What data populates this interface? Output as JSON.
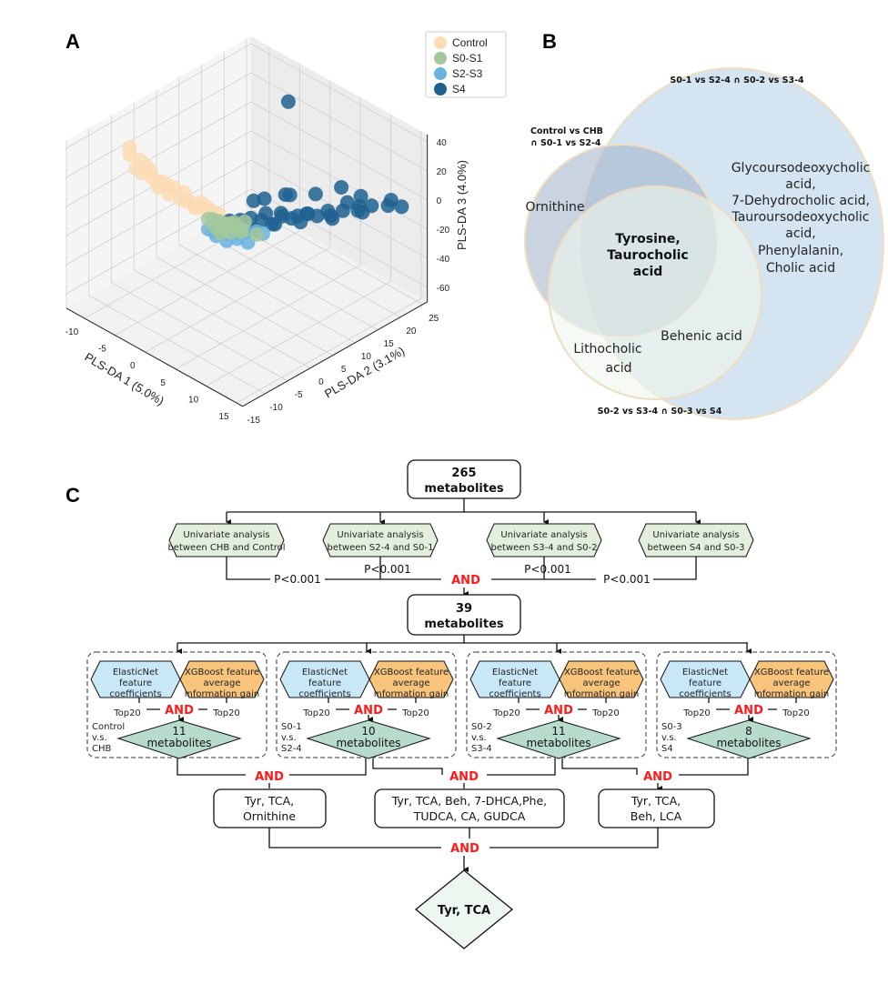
{
  "panel_labels": {
    "a": "A",
    "b": "B",
    "c": "C"
  },
  "chart_data": {
    "type": "scatter",
    "projection": "3d",
    "xlabel": "PLS-DA 1 (5.0%)",
    "ylabel": "PLS-DA 2 (3.1%)",
    "zlabel": "PLS-DA 3 (4.0%)",
    "xticks": [
      -10,
      -5,
      0,
      5,
      10,
      15
    ],
    "yticks": [
      -15,
      -10,
      -5,
      0,
      5,
      10,
      15,
      20,
      25
    ],
    "zticks": [
      40,
      20,
      0,
      -20,
      -40,
      -60
    ],
    "xlim": [
      -13,
      16
    ],
    "ylim": [
      -15,
      26
    ],
    "zlim": [
      -70,
      45
    ],
    "grid": true,
    "legend": "top-right",
    "series": [
      {
        "name": "Control",
        "color": "#fcdcb4",
        "points": [
          [
            -10,
            -5,
            30
          ],
          [
            -10,
            -5,
            25
          ],
          [
            -9,
            -4,
            22
          ],
          [
            -9,
            -5,
            18
          ],
          [
            -8,
            -4,
            20
          ],
          [
            -8,
            -3,
            15
          ],
          [
            -7,
            -4,
            14
          ],
          [
            -7,
            -3,
            10
          ],
          [
            -6,
            -3,
            12
          ],
          [
            -6,
            -2,
            8
          ],
          [
            -5,
            -3,
            6
          ],
          [
            -5,
            -2,
            9
          ],
          [
            -4,
            -2,
            4
          ],
          [
            -4,
            -1,
            6
          ],
          [
            -3,
            -1,
            2
          ],
          [
            -3,
            -2,
            4
          ],
          [
            -2,
            -1,
            0
          ],
          [
            -2,
            0,
            2
          ],
          [
            -1,
            0,
            -1
          ],
          [
            0,
            0,
            0
          ],
          [
            -1,
            1,
            -3
          ],
          [
            -6,
            -4,
            10
          ],
          [
            -8,
            -5,
            17
          ],
          [
            -3,
            0,
            -4
          ],
          [
            -2,
            1,
            -2
          ],
          [
            1,
            0,
            1
          ]
        ]
      },
      {
        "name": "S4",
        "color": "#1f6291",
        "points": [
          [
            2,
            1,
            -3
          ],
          [
            3,
            2,
            -2
          ],
          [
            4,
            3,
            0
          ],
          [
            5,
            4,
            -1
          ],
          [
            5,
            5,
            2
          ],
          [
            6,
            5,
            -3
          ],
          [
            6,
            7,
            1
          ],
          [
            7,
            6,
            3
          ],
          [
            7,
            8,
            -2
          ],
          [
            8,
            8,
            2
          ],
          [
            8,
            10,
            0
          ],
          [
            9,
            9,
            4
          ],
          [
            9,
            11,
            -1
          ],
          [
            10,
            12,
            3
          ],
          [
            10,
            13,
            -4
          ],
          [
            11,
            14,
            2
          ],
          [
            11,
            15,
            6
          ],
          [
            12,
            16,
            1
          ],
          [
            12,
            17,
            -2
          ],
          [
            13,
            15,
            8
          ],
          [
            4,
            6,
            8
          ],
          [
            3,
            5,
            6
          ],
          [
            6,
            9,
            10
          ],
          [
            8,
            12,
            10
          ],
          [
            10,
            15,
            14
          ],
          [
            12,
            19,
            -1
          ],
          [
            14,
            20,
            2
          ],
          [
            13,
            22,
            0
          ],
          [
            9,
            14,
            -6
          ],
          [
            7,
            10,
            -8
          ],
          [
            5,
            7,
            -9
          ],
          [
            4,
            4,
            -10
          ],
          [
            11,
            18,
            5
          ],
          [
            14,
            23,
            -4
          ],
          [
            6,
            8,
            12
          ],
          [
            5,
            10,
            70
          ]
        ]
      },
      {
        "name": "S2-S3",
        "color": "#6ab3e0",
        "points": [
          [
            1,
            -1,
            -9
          ],
          [
            2,
            0,
            -10
          ],
          [
            3,
            1,
            -9
          ],
          [
            4,
            2,
            -8
          ],
          [
            5,
            3,
            -7
          ],
          [
            0,
            -1,
            -10
          ],
          [
            3,
            -1,
            -11
          ],
          [
            6,
            3,
            -6
          ],
          [
            4,
            0,
            -9
          ],
          [
            2,
            -2,
            -8
          ],
          [
            1,
            1,
            -12
          ],
          [
            5,
            1,
            -11
          ]
        ]
      },
      {
        "name": "S0-S1",
        "color": "#a3c89c",
        "points": [
          [
            1,
            0,
            -4
          ],
          [
            2,
            0,
            -6
          ],
          [
            2,
            1,
            -5
          ],
          [
            3,
            0,
            -7
          ],
          [
            1,
            -1,
            -6
          ],
          [
            3,
            1,
            -4
          ],
          [
            2,
            -1,
            -8
          ],
          [
            1,
            1,
            -7
          ],
          [
            4,
            1,
            -6
          ],
          [
            3,
            2,
            -8
          ],
          [
            0,
            0,
            -5
          ],
          [
            2,
            2,
            -6
          ],
          [
            5,
            3,
            -9
          ],
          [
            0,
            -1,
            -3
          ],
          [
            3,
            3,
            -5
          ]
        ]
      }
    ]
  },
  "venn": {
    "set_top": "S0-1 vs S2-4 ∩ S0-2 vs S3-4",
    "set_left": [
      "Control vs CHB",
      "∩ S0-1 vs S2-4"
    ],
    "set_bottom": "S0-2 vs S3-4 ∩ S0-3 vs S4",
    "left_only": "Ornithine",
    "center": [
      "Tyrosine,",
      "Taurocholic",
      "acid"
    ],
    "top_only": [
      "Glycoursodeoxycholic",
      "acid,",
      "7-Dehydrocholic acid,",
      "Tauroursodeoxycholic",
      "acid,",
      "Phenylalanin,",
      "Cholic acid"
    ],
    "top_bottom": "Behenic acid",
    "left_bottom": [
      "Lithocholic",
      "acid"
    ],
    "colors": {
      "top": "#d4e4f0",
      "left": "#aab8cc",
      "bottom": "#e4ebdc",
      "outline": "#f0dcc0"
    }
  },
  "flow": {
    "start": [
      "265",
      "metabolites"
    ],
    "univariate": [
      [
        "Univariate analysis",
        "between CHB and Control"
      ],
      [
        "Univariate analysis",
        "between S2-4 and S0-1"
      ],
      [
        "Univariate analysis",
        "between S3-4 and S0-2"
      ],
      [
        "Univariate analysis",
        "between S4 and S0-3"
      ]
    ],
    "pvalue": "P<0.001",
    "and": "AND",
    "mid": [
      "39",
      "metabolites"
    ],
    "groups": [
      {
        "label": [
          "Control",
          "v.s.",
          "CHB"
        ],
        "result": [
          "11",
          "metabolites"
        ]
      },
      {
        "label": [
          "S0-1",
          "v.s.",
          "S2-4"
        ],
        "result": [
          "10",
          "metabolites"
        ]
      },
      {
        "label": [
          "S0-2",
          "v.s.",
          "S3-4"
        ],
        "result": [
          "11",
          "metabolites"
        ]
      },
      {
        "label": [
          "S0-3",
          "v.s.",
          "S4"
        ],
        "result": [
          "8",
          "metabolites"
        ]
      }
    ],
    "elasticnet": [
      "ElasticNet",
      "feature",
      "coefficients"
    ],
    "xgboost": [
      "XGBoost feature",
      "average",
      "information gain"
    ],
    "top": "Top20",
    "results": [
      [
        "Tyr, TCA,",
        "Ornithine"
      ],
      [
        "Tyr, TCA, Beh, 7-DHCA,Phe,",
        "TUDCA, CA, GUDCA"
      ],
      [
        "Tyr, TCA,",
        "Beh, LCA"
      ]
    ],
    "final": "Tyr, TCA",
    "colors": {
      "univariate": "#e3eedd",
      "elasticnet": "#c8e8f8",
      "xgboost": "#f8c47c",
      "diamond": "#b8dccb",
      "and": "#ff1a1a"
    }
  }
}
